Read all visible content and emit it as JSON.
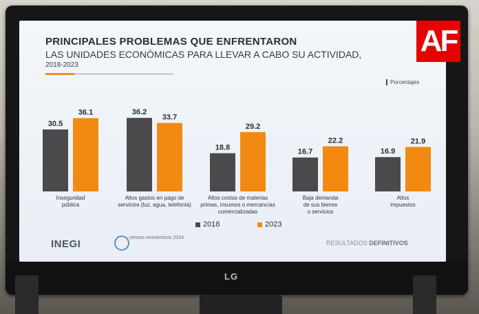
{
  "slide": {
    "title_line1": "PRINCIPALES PROBLEMAS QUE ENFRENTARON",
    "title_line2": "LAS UNIDADES ECONÓMICAS PARA LLEVAR A CABO SU ACTIVIDAD,",
    "title_line3": "2018-2023",
    "units": "Porcentajes",
    "legend_2018": "2018",
    "legend_2023": "2023",
    "footer_inegi": "INEGI",
    "footer_censos": "censos económicos 2024",
    "footer_result_a": "RESULTADOS",
    "footer_result_b": "DEFINITIVOS"
  },
  "watermark": "AF",
  "monitor_brand": "LG",
  "colors": {
    "y2018": "#4a4a4d",
    "y2023": "#f28a12",
    "watermark": "#e60000"
  },
  "chart_data": {
    "type": "bar",
    "categories": [
      [
        "Inseguridad",
        "pública"
      ],
      [
        "Altos gastos en pago de",
        "servicios (luz, agua, telefonía)"
      ],
      [
        "Altos costos de materias",
        "primas, insumos o mercancías",
        "comercializadas"
      ],
      [
        "Baja demanda",
        "de sus bienes",
        "o servicios"
      ],
      [
        "Altos",
        "impuestos"
      ]
    ],
    "series": [
      {
        "name": "2018",
        "values": [
          30.5,
          36.2,
          18.8,
          16.7,
          16.9
        ]
      },
      {
        "name": "2023",
        "values": [
          36.1,
          33.7,
          29.2,
          22.2,
          21.9
        ]
      }
    ],
    "labels": [
      [
        "30.5",
        "36.1"
      ],
      [
        "36.2",
        "33.7"
      ],
      [
        "18.8",
        "29.2"
      ],
      [
        "16.7",
        "22.2"
      ],
      [
        "16.9",
        "21.9"
      ]
    ],
    "ylim": [
      0,
      40
    ]
  }
}
